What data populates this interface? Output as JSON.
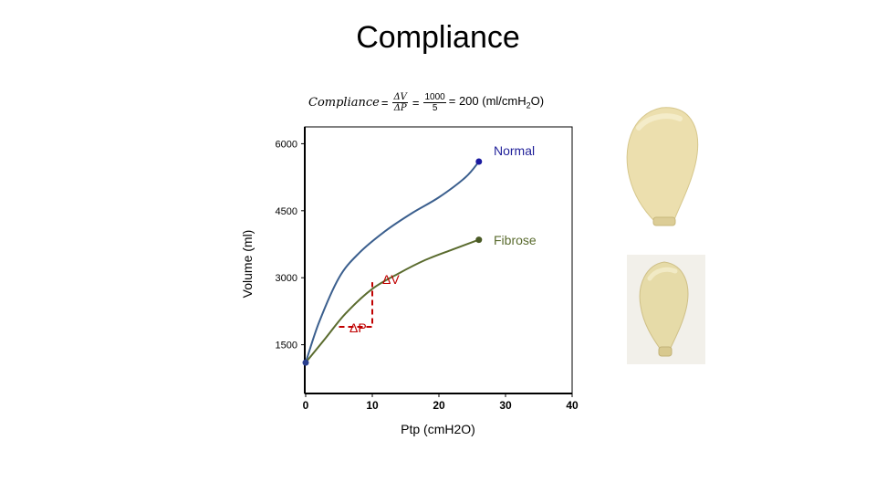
{
  "slide": {
    "title": "Compliance"
  },
  "formula": {
    "lhs": "Compliance",
    "eq1": "=",
    "frac1_num": "ΔV",
    "frac1_den": "ΔP",
    "eq2": "=",
    "frac2_num": "1000",
    "frac2_den": "5",
    "result_pre": "= 200 (ml/cmH",
    "result_sub": "2",
    "result_post": "O)"
  },
  "chart_data": {
    "type": "line",
    "xlabel": "Ptp (cmH2O)",
    "ylabel": "Volume (ml)",
    "xlim": [
      0,
      40
    ],
    "ylim": [
      0,
      6000
    ],
    "x_ticks": [
      0,
      10,
      20,
      30,
      40
    ],
    "y_ticks": [
      1500,
      3000,
      4500,
      6000
    ],
    "grid": false,
    "series": [
      {
        "name": "Normal",
        "color": "#3b5f8e",
        "label_color": "#1f1f99",
        "marker_color": "#1a1aa0",
        "points": [
          [
            0,
            1100
          ],
          [
            2,
            2000
          ],
          [
            5,
            3000
          ],
          [
            8,
            3550
          ],
          [
            12,
            4050
          ],
          [
            16,
            4450
          ],
          [
            20,
            4800
          ],
          [
            24,
            5250
          ],
          [
            26,
            5600
          ]
        ]
      },
      {
        "name": "Fibrose",
        "color": "#5a6b2e",
        "label_color": "#5a6b2e",
        "marker_color": "#4a5a25",
        "points": [
          [
            0,
            1100
          ],
          [
            3,
            1650
          ],
          [
            6,
            2200
          ],
          [
            10,
            2750
          ],
          [
            14,
            3100
          ],
          [
            18,
            3400
          ],
          [
            22,
            3630
          ],
          [
            26,
            3850
          ]
        ]
      }
    ],
    "annotations": [
      {
        "text": "ΔV",
        "color": "#c00000"
      },
      {
        "text": "ΔP",
        "color": "#c00000"
      }
    ],
    "delta_triangle": {
      "x0": 5,
      "x1": 10,
      "y0": 1900,
      "y1": 2900,
      "color": "#c00000"
    }
  },
  "images": {
    "balloon_normal": "balloon-normal",
    "balloon_fibrose": "balloon-fibrose"
  }
}
